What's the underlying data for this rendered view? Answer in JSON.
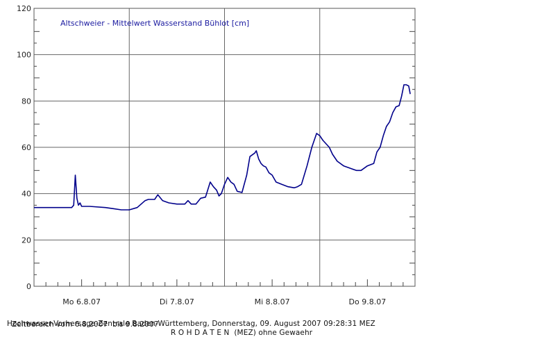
{
  "chart_data": {
    "type": "line",
    "title": "Altschweier - Mittelwert Wasserstand Bühlot [cm]",
    "xlabel": "",
    "ylabel": "",
    "ylim": [
      0,
      120
    ],
    "yticks": [
      0,
      20,
      40,
      60,
      80,
      100,
      120
    ],
    "xlim_hours": [
      0,
      96
    ],
    "x_tick_labels": [
      "Mo 6.8.07",
      "Di 7.8.07",
      "Mi 8.8.07",
      "Do 9.8.07"
    ],
    "grid": true,
    "series": [
      {
        "name": "",
        "color": "#00008b",
        "x_hours": [
          0,
          5,
          9.5,
          10,
          10.4,
          10.8,
          11.2,
          11.6,
          12,
          14,
          18,
          20,
          22,
          24,
          26,
          28,
          28.8,
          29.6,
          30.4,
          31.2,
          32.4,
          34,
          36,
          38,
          38.8,
          39.6,
          40,
          40.8,
          42,
          43.2,
          44.4,
          45.2,
          46,
          46.6,
          47.2,
          48,
          48.8,
          49.6,
          50.4,
          51.2,
          52.4,
          53.6,
          54.4,
          55.6,
          56,
          56.6,
          57.2,
          57.8,
          58.4,
          59.2,
          60,
          61,
          62.4,
          64,
          65.6,
          66.4,
          67.4,
          68.8,
          70,
          71.2,
          72,
          72.8,
          73.6,
          74.4,
          75.2,
          76.4,
          78,
          79.6,
          81.2,
          82.4,
          84,
          85.6,
          86.4,
          87.2,
          88,
          88.8,
          89.6,
          90.4,
          91.2,
          92,
          92.6,
          93.2,
          93.8,
          94.4,
          94.8
        ],
        "values": [
          34,
          34,
          34,
          35,
          48,
          38,
          35,
          36,
          34.5,
          34.5,
          34,
          33.5,
          33,
          33,
          34,
          37,
          37.5,
          37.5,
          37.5,
          39.5,
          37,
          36,
          35.5,
          35.5,
          37,
          35.5,
          35.5,
          35.5,
          38,
          38.5,
          45,
          43,
          41.5,
          39,
          40,
          44,
          47,
          45,
          44,
          41,
          40.5,
          48,
          56,
          57.5,
          58.5,
          55,
          53,
          52,
          51.5,
          49,
          48,
          45,
          44,
          43,
          42.5,
          43,
          44,
          52,
          60,
          66,
          65,
          63,
          61.5,
          60,
          57,
          54,
          52,
          51,
          50,
          50,
          52,
          53,
          58,
          60,
          65,
          69,
          71,
          75,
          77.5,
          78,
          82,
          87,
          87,
          86.5,
          83
        ]
      }
    ],
    "footer_range": "Zeitbereich vom 6.8.2007  bis 9.8.2007",
    "footer_rohdaten": "R O H D A T E N  (MEZ) ohne Gewaehr",
    "footer_source": "Hochwasser-Vorhersage-Zentrale Baden-Württemberg, Donnerstag, 09. August 2007 09:28:31 MEZ"
  }
}
